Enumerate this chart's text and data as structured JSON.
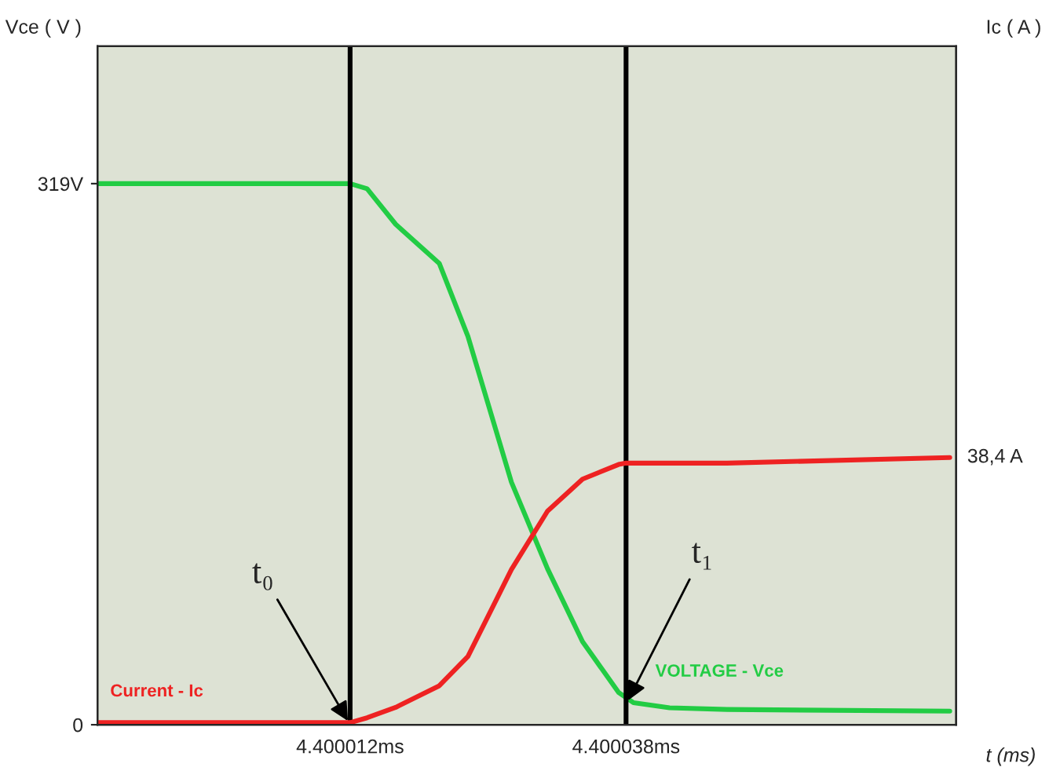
{
  "chart_data": {
    "type": "line",
    "xlabel": "t (ms)",
    "ylabel": "Vce ( V )",
    "y2label": "Ic ( A )",
    "xlim": [
      4.3999882,
      4.4000691
    ],
    "xticks": [
      {
        "value": 4.400012,
        "label": "4.400012ms"
      },
      {
        "value": 4.400038,
        "label": "4.400038ms"
      }
    ],
    "ylim": [
      0,
      400
    ],
    "yticks": [
      0,
      {
        "value": 319,
        "label": "319V"
      }
    ],
    "y2lim": [
      0,
      97.5
    ],
    "series": [
      {
        "name": "VOLTAGE - Vce",
        "color": "#22cc44",
        "x": [
          4.3999882,
          4.400012,
          4.4000136,
          4.4000163,
          4.4000204,
          4.4000231,
          4.4000272,
          4.4000306,
          4.4000339,
          4.4000373,
          4.4000387,
          4.4000421,
          4.4000475,
          4.4000685
        ],
        "values": [
          319,
          319,
          316,
          295,
          272,
          229,
          143,
          92,
          49,
          19,
          13,
          10,
          9,
          8
        ]
      },
      {
        "name": "Current - Ic",
        "color": "#ee2222",
        "axis": "y2",
        "x": [
          4.3999882,
          4.400012,
          4.4000136,
          4.4000163,
          4.4000204,
          4.4000231,
          4.4000272,
          4.4000306,
          4.4000339,
          4.4000373,
          4.400038,
          4.4000475,
          4.4000685
        ],
        "values": [
          0.3,
          0.3,
          1,
          2.5,
          5.6,
          9.8,
          22.3,
          30.7,
          35.3,
          37.4,
          37.6,
          37.6,
          38.4
        ],
        "value_labels": [
          null,
          null,
          null,
          null,
          null,
          null,
          null,
          null,
          null,
          null,
          null,
          null,
          "38,4 A"
        ]
      }
    ],
    "ref_lines": [
      {
        "axis": "x",
        "value": 4.400012,
        "color": "#000000"
      },
      {
        "axis": "x",
        "value": 4.400038,
        "color": "#000000"
      }
    ],
    "annotations": [
      {
        "text": "t₀",
        "x": 4.400012,
        "y": 0
      },
      {
        "text": "t₁",
        "x": 4.400038,
        "y": 12
      }
    ],
    "grid": false,
    "marker": "none",
    "line_style": "solid"
  }
}
